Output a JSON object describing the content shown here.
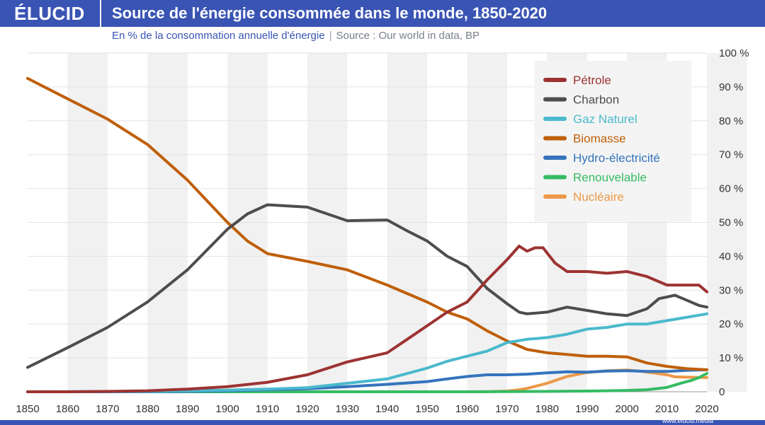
{
  "header": {
    "brand": "ÉLUCID",
    "title": "Source de l'énergie consommée dans le monde, 1850-2020",
    "subtitle": "En % de la consommation annuelle d'énergie",
    "separator": "|",
    "source": "Source : Our world in data, BP",
    "watermark": "www.elucid.media"
  },
  "colors": {
    "brand": "#3a54b4",
    "band": "#f1f1f1",
    "petrole": "#9c3332",
    "charbon": "#4d4d4d",
    "gaz": "#4ab9cc",
    "biomasse": "#bf5f0a",
    "hydro": "#3574bd",
    "renouvelable": "#35bb63",
    "nucleaire": "#ec9848"
  },
  "chart_data": {
    "type": "line",
    "title": "Source de l'énergie consommée dans le monde, 1850-2020",
    "subtitle": "En % de la consommation annuelle d'énergie",
    "xlabel": "",
    "ylabel": "",
    "xlim": [
      1850,
      2020
    ],
    "ylim": [
      0,
      100
    ],
    "x_ticks": [
      "1850",
      "1860",
      "1870",
      "1880",
      "1890",
      "1900",
      "1910",
      "1920",
      "1930",
      "1940",
      "1950",
      "1960",
      "1970",
      "1980",
      "1990",
      "2000",
      "2010",
      "2020"
    ],
    "y_ticks": [
      "0",
      "10 %",
      "20 %",
      "30 %",
      "40 %",
      "50 %",
      "60 %",
      "70 %",
      "80 %",
      "90 %",
      "100 %"
    ],
    "legend_position": "top-right",
    "series": [
      {
        "name": "Pétrole",
        "color": "#9c3332",
        "points": [
          [
            1850,
            0
          ],
          [
            1860,
            0
          ],
          [
            1870,
            0.1
          ],
          [
            1880,
            0.3
          ],
          [
            1890,
            0.8
          ],
          [
            1900,
            1.5
          ],
          [
            1910,
            2.8
          ],
          [
            1920,
            5
          ],
          [
            1930,
            8.8
          ],
          [
            1940,
            11.5
          ],
          [
            1945,
            15.5
          ],
          [
            1950,
            19.5
          ],
          [
            1955,
            23.5
          ],
          [
            1960,
            26.5
          ],
          [
            1965,
            33
          ],
          [
            1970,
            39
          ],
          [
            1973,
            43
          ],
          [
            1975,
            41.5
          ],
          [
            1977,
            42.5
          ],
          [
            1979,
            42.5
          ],
          [
            1982,
            38
          ],
          [
            1985,
            35.5
          ],
          [
            1990,
            35.5
          ],
          [
            1995,
            35
          ],
          [
            2000,
            35.5
          ],
          [
            2005,
            34
          ],
          [
            2010,
            31.5
          ],
          [
            2015,
            31.5
          ],
          [
            2018,
            31.5
          ],
          [
            2020,
            29.5
          ]
        ]
      },
      {
        "name": "Charbon",
        "color": "#4d4d4d",
        "points": [
          [
            1850,
            7.2
          ],
          [
            1860,
            13
          ],
          [
            1870,
            19
          ],
          [
            1880,
            26.5
          ],
          [
            1890,
            36
          ],
          [
            1900,
            48
          ],
          [
            1905,
            52.5
          ],
          [
            1910,
            55.2
          ],
          [
            1920,
            54.5
          ],
          [
            1930,
            50.5
          ],
          [
            1940,
            50.7
          ],
          [
            1945,
            47.5
          ],
          [
            1950,
            44.5
          ],
          [
            1955,
            40
          ],
          [
            1960,
            37
          ],
          [
            1965,
            30.5
          ],
          [
            1970,
            26
          ],
          [
            1973,
            23.5
          ],
          [
            1975,
            23
          ],
          [
            1980,
            23.5
          ],
          [
            1985,
            25
          ],
          [
            1990,
            24
          ],
          [
            1995,
            23
          ],
          [
            2000,
            22.5
          ],
          [
            2005,
            24.5
          ],
          [
            2008,
            27.5
          ],
          [
            2010,
            28
          ],
          [
            2012,
            28.5
          ],
          [
            2015,
            27
          ],
          [
            2018,
            25.5
          ],
          [
            2020,
            25
          ]
        ]
      },
      {
        "name": "Gaz Naturel",
        "color": "#4ab9cc",
        "points": [
          [
            1850,
            0
          ],
          [
            1880,
            0.1
          ],
          [
            1890,
            0.3
          ],
          [
            1900,
            0.5
          ],
          [
            1910,
            0.8
          ],
          [
            1920,
            1.2
          ],
          [
            1930,
            2.5
          ],
          [
            1940,
            3.8
          ],
          [
            1950,
            7
          ],
          [
            1955,
            9
          ],
          [
            1960,
            10.5
          ],
          [
            1965,
            12
          ],
          [
            1970,
            14.5
          ],
          [
            1975,
            15.5
          ],
          [
            1980,
            16
          ],
          [
            1985,
            17
          ],
          [
            1990,
            18.5
          ],
          [
            1995,
            19
          ],
          [
            2000,
            20
          ],
          [
            2005,
            20
          ],
          [
            2010,
            21
          ],
          [
            2015,
            22
          ],
          [
            2020,
            23
          ]
        ]
      },
      {
        "name": "Biomasse",
        "color": "#bf5f0a",
        "points": [
          [
            1850,
            92.5
          ],
          [
            1860,
            86.5
          ],
          [
            1870,
            80.5
          ],
          [
            1880,
            73
          ],
          [
            1890,
            62.5
          ],
          [
            1900,
            50
          ],
          [
            1905,
            44.5
          ],
          [
            1910,
            40.8
          ],
          [
            1920,
            38.5
          ],
          [
            1930,
            36
          ],
          [
            1940,
            31.5
          ],
          [
            1950,
            26.5
          ],
          [
            1955,
            23.5
          ],
          [
            1960,
            21.5
          ],
          [
            1965,
            18
          ],
          [
            1970,
            15
          ],
          [
            1975,
            12.5
          ],
          [
            1980,
            11.5
          ],
          [
            1985,
            11
          ],
          [
            1990,
            10.5
          ],
          [
            1995,
            10.5
          ],
          [
            2000,
            10.3
          ],
          [
            2005,
            8.5
          ],
          [
            2010,
            7.5
          ],
          [
            2015,
            6.8
          ],
          [
            2020,
            6.5
          ]
        ]
      },
      {
        "name": "Hydro-électricité",
        "color": "#3574bd",
        "points": [
          [
            1850,
            0
          ],
          [
            1880,
            0
          ],
          [
            1890,
            0.1
          ],
          [
            1900,
            0.3
          ],
          [
            1910,
            0.6
          ],
          [
            1920,
            0.9
          ],
          [
            1930,
            1.5
          ],
          [
            1940,
            2.2
          ],
          [
            1950,
            3
          ],
          [
            1955,
            3.8
          ],
          [
            1960,
            4.5
          ],
          [
            1965,
            5
          ],
          [
            1970,
            5
          ],
          [
            1975,
            5.2
          ],
          [
            1980,
            5.6
          ],
          [
            1985,
            5.9
          ],
          [
            1990,
            5.8
          ],
          [
            1995,
            6.1
          ],
          [
            2000,
            6.2
          ],
          [
            2005,
            6
          ],
          [
            2010,
            6
          ],
          [
            2015,
            6.3
          ],
          [
            2020,
            6.5
          ]
        ]
      },
      {
        "name": "Renouvelable",
        "color": "#35bb63",
        "points": [
          [
            1850,
            0
          ],
          [
            1960,
            0
          ],
          [
            1970,
            0.05
          ],
          [
            1980,
            0.1
          ],
          [
            1990,
            0.2
          ],
          [
            1995,
            0.3
          ],
          [
            2000,
            0.4
          ],
          [
            2005,
            0.6
          ],
          [
            2008,
            1
          ],
          [
            2010,
            1.3
          ],
          [
            2012,
            2
          ],
          [
            2014,
            2.7
          ],
          [
            2016,
            3.3
          ],
          [
            2018,
            4.2
          ],
          [
            2020,
            5.4
          ]
        ]
      },
      {
        "name": "Nucléaire",
        "color": "#ec9848",
        "points": [
          [
            1850,
            0
          ],
          [
            1965,
            0
          ],
          [
            1970,
            0.2
          ],
          [
            1973,
            0.6
          ],
          [
            1975,
            1
          ],
          [
            1980,
            2.5
          ],
          [
            1985,
            4.5
          ],
          [
            1990,
            5.7
          ],
          [
            1995,
            6.2
          ],
          [
            2000,
            6.4
          ],
          [
            2003,
            6.1
          ],
          [
            2005,
            5.8
          ],
          [
            2010,
            5
          ],
          [
            2012,
            4.4
          ],
          [
            2015,
            4.3
          ],
          [
            2020,
            4.2
          ]
        ]
      }
    ]
  }
}
